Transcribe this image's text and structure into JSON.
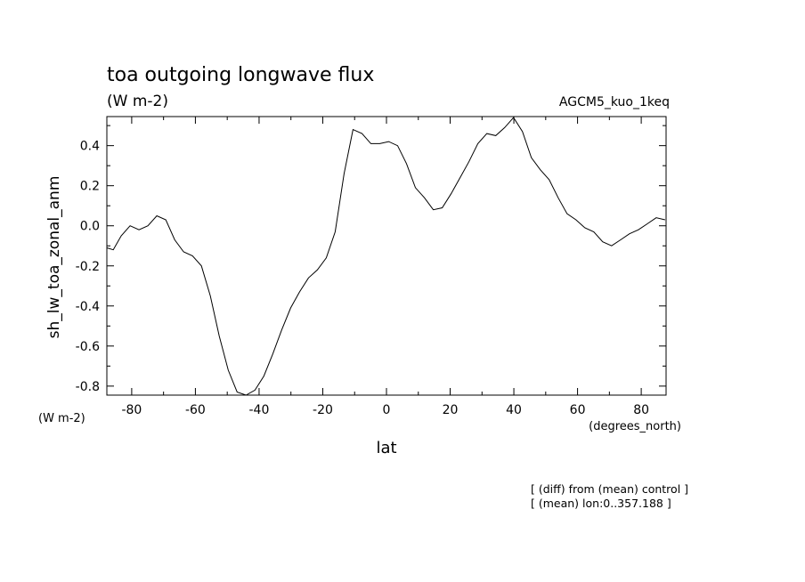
{
  "chart_data": {
    "type": "line",
    "title": "toa outgoing longwave flux",
    "subtitle": "(W m-2)",
    "run_label": "AGCM5_kuo_1keq",
    "xlabel": "lat",
    "xunits": "(degrees_north)",
    "ylabel": "sh_lw_toa_zonal_anm",
    "yunits": "(W m-2)",
    "notes": [
      "[ (diff) from (mean) control ]",
      "[ (mean) lon:0..357.188 ]"
    ],
    "xlim": [
      -87.8,
      87.8
    ],
    "ylim": [
      -0.845,
      0.545
    ],
    "xticks": [
      -80,
      -60,
      -40,
      -20,
      0,
      20,
      40,
      60,
      80
    ],
    "yticks": [
      -0.8,
      -0.6,
      -0.4,
      -0.2,
      0.0,
      0.2,
      0.4
    ],
    "ytick_labels": [
      "-0.8",
      "-0.6",
      "-0.4",
      "-0.2",
      "0.0",
      "0.2",
      "0.4"
    ],
    "grid": false,
    "series": [
      {
        "x": [
          -87.8,
          -85.8,
          -83.3,
          -80.5,
          -77.7,
          -74.9,
          -72.1,
          -69.3,
          -66.5,
          -63.7,
          -60.9,
          -58.1,
          -55.3,
          -52.5,
          -49.7,
          -46.9,
          -44.1,
          -41.3,
          -38.5,
          -35.7,
          -32.9,
          -30.1,
          -27.3,
          -24.5,
          -21.7,
          -18.9,
          -16.1,
          -13.3,
          -10.5,
          -7.7,
          -4.9,
          -2.1,
          0.7,
          3.5,
          6.3,
          9.1,
          11.9,
          14.7,
          17.5,
          20.3,
          23.1,
          25.9,
          28.7,
          31.5,
          34.3,
          37.1,
          39.9,
          42.7,
          45.5,
          48.3,
          51.1,
          53.9,
          56.7,
          59.5,
          62.3,
          65.1,
          67.9,
          70.7,
          73.5,
          76.3,
          79.1,
          81.9,
          84.7,
          87.5
        ],
        "y": [
          -0.11,
          -0.12,
          -0.05,
          0.0,
          -0.02,
          0.0,
          0.05,
          0.03,
          -0.07,
          -0.13,
          -0.15,
          -0.2,
          -0.35,
          -0.55,
          -0.72,
          -0.83,
          -0.85,
          -0.82,
          -0.75,
          -0.64,
          -0.52,
          -0.41,
          -0.33,
          -0.26,
          -0.22,
          -0.16,
          -0.03,
          0.26,
          0.48,
          0.46,
          0.41,
          0.41,
          0.42,
          0.4,
          0.31,
          0.19,
          0.14,
          0.08,
          0.09,
          0.16,
          0.24,
          0.32,
          0.41,
          0.46,
          0.45,
          0.49,
          0.54,
          0.47,
          0.34,
          0.28,
          0.23,
          0.14,
          0.06,
          0.03,
          -0.01,
          -0.03,
          -0.08,
          -0.1,
          -0.07,
          -0.04,
          -0.02,
          0.01,
          0.04,
          0.03
        ]
      }
    ]
  }
}
